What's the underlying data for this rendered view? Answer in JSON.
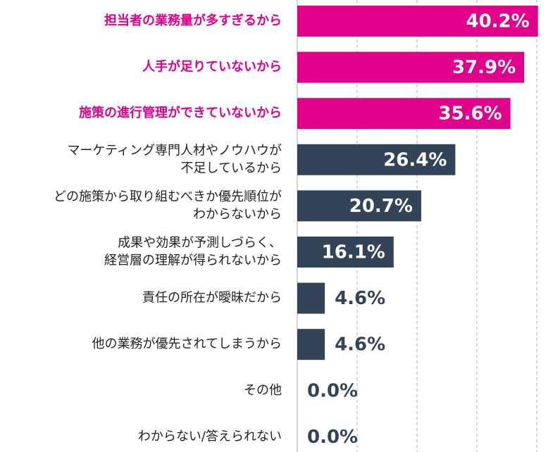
{
  "colors": {
    "highlight": "#e0008c",
    "normal": "#334459",
    "grid": "#c9c9c9",
    "axis": "#c9c9c9",
    "label_highlight": "#e0008c",
    "label_normal": "#222222",
    "value_on_bar": "#ffffff",
    "value_outside": "#334459"
  },
  "chart_data": {
    "type": "bar",
    "orientation": "horizontal",
    "unit": "%",
    "xlim": [
      0,
      45
    ],
    "grid": true,
    "categories": [
      [
        "担当者の業務量が多すぎるから"
      ],
      [
        "人手が足りていないから"
      ],
      [
        "施策の進行管理ができていないから"
      ],
      [
        "マーケティング専門人材やノウハウが",
        "不足しているから"
      ],
      [
        "どの施策から取り組むべきか優先順位が",
        "わからないから"
      ],
      [
        "成果や効果が予測しづらく、",
        "経営層の理解が得られないから"
      ],
      [
        "責任の所在が曖昧だから"
      ],
      [
        "他の業務が優先されてしまうから"
      ],
      [
        "その他"
      ],
      [
        "わからない/答えられない"
      ]
    ],
    "values": [
      40.2,
      37.9,
      35.6,
      26.4,
      20.7,
      16.1,
      4.6,
      4.6,
      0.0,
      0.0
    ],
    "value_labels": [
      "40.2%",
      "37.9%",
      "35.6%",
      "26.4%",
      "20.7%",
      "16.1%",
      "4.6%",
      "4.6%",
      "0.0%",
      "0.0%"
    ],
    "highlighted": [
      true,
      true,
      true,
      false,
      false,
      false,
      false,
      false,
      false,
      false
    ]
  }
}
